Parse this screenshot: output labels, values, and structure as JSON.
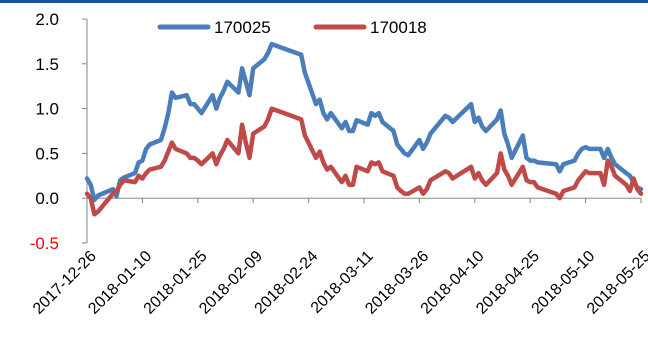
{
  "chart_data": {
    "type": "line",
    "title": "",
    "xlabel": "",
    "ylabel": "",
    "ylim": [
      -0.5,
      2.0
    ],
    "yticks": [
      "2.0",
      "1.5",
      "1.0",
      "0.5",
      "0.0",
      "-0.5"
    ],
    "negative_tick_color": "#ff0000",
    "xlim": [
      "2017-12-26",
      "2018-05-25"
    ],
    "xtick_labels": [
      "2017-12-26",
      "2018-01-10",
      "2018-01-25",
      "2018-02-09",
      "2018-02-24",
      "2018-03-11",
      "2018-03-26",
      "2018-04-10",
      "2018-04-25",
      "2018-05-10",
      "2018-05-25"
    ],
    "grid": false,
    "legend_position": "top",
    "accent_color": "#1f4e9c",
    "series": [
      {
        "name": "170025",
        "color": "#4a7ebb",
        "points": [
          [
            "2017-12-26",
            0.22
          ],
          [
            "2017-12-27",
            0.15
          ],
          [
            "2017-12-28",
            -0.02
          ],
          [
            "2017-12-29",
            0.03
          ],
          [
            "2018-01-02",
            0.1
          ],
          [
            "2018-01-03",
            0.02
          ],
          [
            "2018-01-04",
            0.2
          ],
          [
            "2018-01-05",
            0.23
          ],
          [
            "2018-01-08",
            0.28
          ],
          [
            "2018-01-09",
            0.4
          ],
          [
            "2018-01-10",
            0.42
          ],
          [
            "2018-01-11",
            0.55
          ],
          [
            "2018-01-12",
            0.6
          ],
          [
            "2018-01-15",
            0.65
          ],
          [
            "2018-01-16",
            0.78
          ],
          [
            "2018-01-17",
            0.95
          ],
          [
            "2018-01-18",
            1.18
          ],
          [
            "2018-01-19",
            1.12
          ],
          [
            "2018-01-22",
            1.15
          ],
          [
            "2018-01-23",
            1.05
          ],
          [
            "2018-01-24",
            1.05
          ],
          [
            "2018-01-25",
            1.0
          ],
          [
            "2018-01-26",
            0.95
          ],
          [
            "2018-01-29",
            1.15
          ],
          [
            "2018-01-30",
            1.0
          ],
          [
            "2018-01-31",
            1.12
          ],
          [
            "2018-02-01",
            1.2
          ],
          [
            "2018-02-02",
            1.3
          ],
          [
            "2018-02-05",
            1.18
          ],
          [
            "2018-02-06",
            1.45
          ],
          [
            "2018-02-07",
            1.3
          ],
          [
            "2018-02-08",
            1.15
          ],
          [
            "2018-02-09",
            1.45
          ],
          [
            "2018-02-12",
            1.55
          ],
          [
            "2018-02-13",
            1.62
          ],
          [
            "2018-02-14",
            1.72
          ],
          [
            "2018-02-22",
            1.6
          ],
          [
            "2018-02-23",
            1.4
          ],
          [
            "2018-02-26",
            1.05
          ],
          [
            "2018-02-27",
            1.1
          ],
          [
            "2018-02-28",
            0.95
          ],
          [
            "2018-03-01",
            0.88
          ],
          [
            "2018-03-02",
            0.95
          ],
          [
            "2018-03-05",
            0.78
          ],
          [
            "2018-03-06",
            0.85
          ],
          [
            "2018-03-07",
            0.75
          ],
          [
            "2018-03-08",
            0.75
          ],
          [
            "2018-03-09",
            0.87
          ],
          [
            "2018-03-12",
            0.82
          ],
          [
            "2018-03-13",
            0.95
          ],
          [
            "2018-03-14",
            0.92
          ],
          [
            "2018-03-15",
            0.95
          ],
          [
            "2018-03-16",
            0.85
          ],
          [
            "2018-03-19",
            0.75
          ],
          [
            "2018-03-20",
            0.6
          ],
          [
            "2018-03-21",
            0.55
          ],
          [
            "2018-03-22",
            0.5
          ],
          [
            "2018-03-23",
            0.48
          ],
          [
            "2018-03-26",
            0.65
          ],
          [
            "2018-03-27",
            0.55
          ],
          [
            "2018-03-28",
            0.62
          ],
          [
            "2018-03-29",
            0.72
          ],
          [
            "2018-04-02",
            0.92
          ],
          [
            "2018-04-03",
            0.9
          ],
          [
            "2018-04-04",
            0.85
          ],
          [
            "2018-04-09",
            1.05
          ],
          [
            "2018-04-10",
            0.85
          ],
          [
            "2018-04-11",
            0.9
          ],
          [
            "2018-04-12",
            0.8
          ],
          [
            "2018-04-13",
            0.75
          ],
          [
            "2018-04-16",
            0.88
          ],
          [
            "2018-04-17",
            0.98
          ],
          [
            "2018-04-18",
            0.72
          ],
          [
            "2018-04-19",
            0.6
          ],
          [
            "2018-04-20",
            0.45
          ],
          [
            "2018-04-23",
            0.7
          ],
          [
            "2018-04-24",
            0.45
          ],
          [
            "2018-04-25",
            0.42
          ],
          [
            "2018-04-26",
            0.42
          ],
          [
            "2018-04-27",
            0.4
          ],
          [
            "2018-05-02",
            0.38
          ],
          [
            "2018-05-03",
            0.3
          ],
          [
            "2018-05-04",
            0.38
          ],
          [
            "2018-05-07",
            0.42
          ],
          [
            "2018-05-08",
            0.5
          ],
          [
            "2018-05-09",
            0.55
          ],
          [
            "2018-05-10",
            0.57
          ],
          [
            "2018-05-11",
            0.55
          ],
          [
            "2018-05-14",
            0.55
          ],
          [
            "2018-05-15",
            0.45
          ],
          [
            "2018-05-16",
            0.55
          ],
          [
            "2018-05-17",
            0.45
          ],
          [
            "2018-05-18",
            0.38
          ],
          [
            "2018-05-21",
            0.28
          ],
          [
            "2018-05-22",
            0.25
          ],
          [
            "2018-05-23",
            0.18
          ],
          [
            "2018-05-24",
            0.12
          ],
          [
            "2018-05-25",
            0.1
          ]
        ]
      },
      {
        "name": "170018",
        "color": "#be4b48",
        "points": [
          [
            "2017-12-26",
            0.05
          ],
          [
            "2017-12-27",
            0.0
          ],
          [
            "2017-12-28",
            -0.18
          ],
          [
            "2017-12-29",
            -0.15
          ],
          [
            "2018-01-02",
            0.05
          ],
          [
            "2018-01-03",
            0.08
          ],
          [
            "2018-01-04",
            0.15
          ],
          [
            "2018-01-05",
            0.2
          ],
          [
            "2018-01-08",
            0.18
          ],
          [
            "2018-01-09",
            0.25
          ],
          [
            "2018-01-10",
            0.22
          ],
          [
            "2018-01-11",
            0.28
          ],
          [
            "2018-01-12",
            0.32
          ],
          [
            "2018-01-15",
            0.35
          ],
          [
            "2018-01-16",
            0.42
          ],
          [
            "2018-01-17",
            0.52
          ],
          [
            "2018-01-18",
            0.62
          ],
          [
            "2018-01-19",
            0.55
          ],
          [
            "2018-01-22",
            0.5
          ],
          [
            "2018-01-23",
            0.45
          ],
          [
            "2018-01-24",
            0.45
          ],
          [
            "2018-01-25",
            0.42
          ],
          [
            "2018-01-26",
            0.38
          ],
          [
            "2018-01-29",
            0.5
          ],
          [
            "2018-01-30",
            0.38
          ],
          [
            "2018-01-31",
            0.48
          ],
          [
            "2018-02-01",
            0.55
          ],
          [
            "2018-02-02",
            0.65
          ],
          [
            "2018-02-05",
            0.5
          ],
          [
            "2018-02-06",
            0.82
          ],
          [
            "2018-02-07",
            0.62
          ],
          [
            "2018-02-08",
            0.45
          ],
          [
            "2018-02-09",
            0.72
          ],
          [
            "2018-02-12",
            0.8
          ],
          [
            "2018-02-13",
            0.88
          ],
          [
            "2018-02-14",
            1.0
          ],
          [
            "2018-02-22",
            0.88
          ],
          [
            "2018-02-23",
            0.7
          ],
          [
            "2018-02-26",
            0.45
          ],
          [
            "2018-02-27",
            0.52
          ],
          [
            "2018-02-28",
            0.4
          ],
          [
            "2018-03-01",
            0.32
          ],
          [
            "2018-03-02",
            0.35
          ],
          [
            "2018-03-05",
            0.18
          ],
          [
            "2018-03-06",
            0.25
          ],
          [
            "2018-03-07",
            0.15
          ],
          [
            "2018-03-08",
            0.15
          ],
          [
            "2018-03-09",
            0.35
          ],
          [
            "2018-03-12",
            0.3
          ],
          [
            "2018-03-13",
            0.4
          ],
          [
            "2018-03-14",
            0.38
          ],
          [
            "2018-03-15",
            0.4
          ],
          [
            "2018-03-16",
            0.3
          ],
          [
            "2018-03-19",
            0.25
          ],
          [
            "2018-03-20",
            0.12
          ],
          [
            "2018-03-21",
            0.08
          ],
          [
            "2018-03-22",
            0.05
          ],
          [
            "2018-03-23",
            0.05
          ],
          [
            "2018-03-26",
            0.12
          ],
          [
            "2018-03-27",
            0.05
          ],
          [
            "2018-03-28",
            0.1
          ],
          [
            "2018-03-29",
            0.2
          ],
          [
            "2018-04-02",
            0.3
          ],
          [
            "2018-04-03",
            0.28
          ],
          [
            "2018-04-04",
            0.22
          ],
          [
            "2018-04-09",
            0.35
          ],
          [
            "2018-04-10",
            0.22
          ],
          [
            "2018-04-11",
            0.28
          ],
          [
            "2018-04-12",
            0.2
          ],
          [
            "2018-04-13",
            0.15
          ],
          [
            "2018-04-16",
            0.28
          ],
          [
            "2018-04-17",
            0.5
          ],
          [
            "2018-04-18",
            0.32
          ],
          [
            "2018-04-19",
            0.25
          ],
          [
            "2018-04-20",
            0.15
          ],
          [
            "2018-04-23",
            0.35
          ],
          [
            "2018-04-24",
            0.2
          ],
          [
            "2018-04-25",
            0.18
          ],
          [
            "2018-04-26",
            0.18
          ],
          [
            "2018-04-27",
            0.12
          ],
          [
            "2018-05-02",
            0.05
          ],
          [
            "2018-05-03",
            0.0
          ],
          [
            "2018-05-04",
            0.08
          ],
          [
            "2018-05-07",
            0.12
          ],
          [
            "2018-05-08",
            0.2
          ],
          [
            "2018-05-09",
            0.25
          ],
          [
            "2018-05-10",
            0.3
          ],
          [
            "2018-05-11",
            0.28
          ],
          [
            "2018-05-14",
            0.28
          ],
          [
            "2018-05-15",
            0.15
          ],
          [
            "2018-05-16",
            0.42
          ],
          [
            "2018-05-17",
            0.35
          ],
          [
            "2018-05-18",
            0.25
          ],
          [
            "2018-05-21",
            0.15
          ],
          [
            "2018-05-22",
            0.08
          ],
          [
            "2018-05-23",
            0.22
          ],
          [
            "2018-05-24",
            0.1
          ],
          [
            "2018-05-25",
            0.05
          ]
        ]
      }
    ]
  }
}
